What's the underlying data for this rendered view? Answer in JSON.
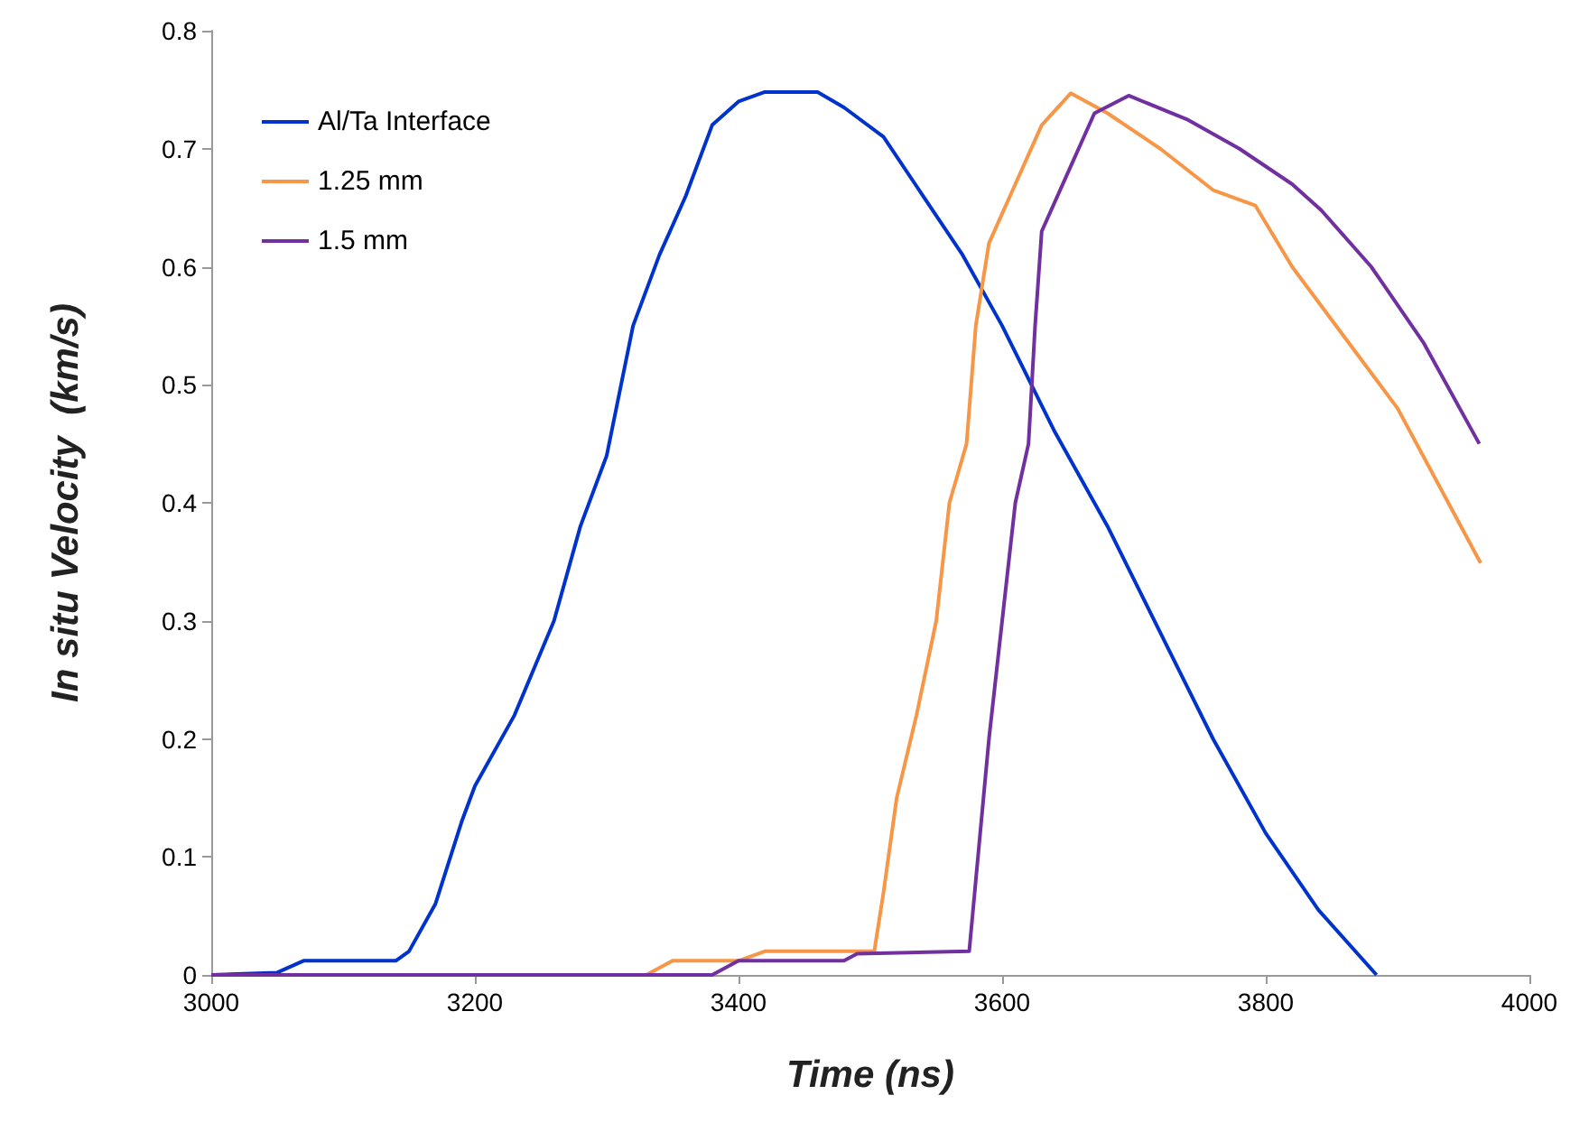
{
  "chart_data": {
    "type": "line",
    "xlabel": "Time (ns)",
    "ylabel": "In situ Velocity  (km/s)",
    "xlim": [
      3000,
      4000
    ],
    "xticks": [
      3000,
      3200,
      3400,
      3600,
      3800,
      4000
    ],
    "ylim": [
      0,
      0.8
    ],
    "yticks": [
      0,
      0.1,
      0.2,
      0.3,
      0.4,
      0.5,
      0.6,
      0.7,
      0.8
    ],
    "grid": false,
    "legend": "top left",
    "marker": "none",
    "line_style": "solid",
    "series": [
      {
        "name": "Al/Ta Interface",
        "color": "#0033cc",
        "x": [
          3000,
          3050,
          3070,
          3140,
          3150,
          3170,
          3190,
          3200,
          3230,
          3260,
          3280,
          3300,
          3320,
          3340,
          3360,
          3380,
          3400,
          3420,
          3460,
          3480,
          3510,
          3540,
          3570,
          3600,
          3640,
          3680,
          3720,
          3760,
          3800,
          3840,
          3884
        ],
        "values": [
          0,
          0.002,
          0.012,
          0.012,
          0.02,
          0.06,
          0.13,
          0.16,
          0.22,
          0.3,
          0.38,
          0.44,
          0.55,
          0.61,
          0.66,
          0.72,
          0.74,
          0.748,
          0.748,
          0.735,
          0.71,
          0.66,
          0.61,
          0.55,
          0.46,
          0.38,
          0.29,
          0.2,
          0.12,
          0.055,
          0
        ]
      },
      {
        "name": "1.25 mm",
        "color": "#f79646",
        "x": [
          3000,
          3330,
          3350,
          3400,
          3420,
          3503,
          3510,
          3520,
          3535,
          3550,
          3560,
          3573,
          3580,
          3590,
          3610,
          3630,
          3652,
          3680,
          3720,
          3760,
          3792,
          3820,
          3860,
          3900,
          3963
        ],
        "values": [
          0,
          0,
          0.012,
          0.012,
          0.02,
          0.02,
          0.07,
          0.15,
          0.22,
          0.3,
          0.4,
          0.45,
          0.55,
          0.62,
          0.67,
          0.72,
          0.747,
          0.73,
          0.7,
          0.665,
          0.652,
          0.6,
          0.54,
          0.48,
          0.349
        ]
      },
      {
        "name": "1.5 mm",
        "color": "#7030a0",
        "x": [
          3000,
          3380,
          3400,
          3480,
          3490,
          3575,
          3580,
          3590,
          3600,
          3610,
          3620,
          3625,
          3630,
          3650,
          3670,
          3696,
          3740,
          3780,
          3820,
          3842,
          3880,
          3920,
          3962
        ],
        "values": [
          0,
          0,
          0.012,
          0.012,
          0.018,
          0.02,
          0.08,
          0.2,
          0.3,
          0.4,
          0.45,
          0.55,
          0.63,
          0.68,
          0.73,
          0.745,
          0.725,
          0.7,
          0.67,
          0.648,
          0.6,
          0.535,
          0.45
        ]
      }
    ]
  }
}
